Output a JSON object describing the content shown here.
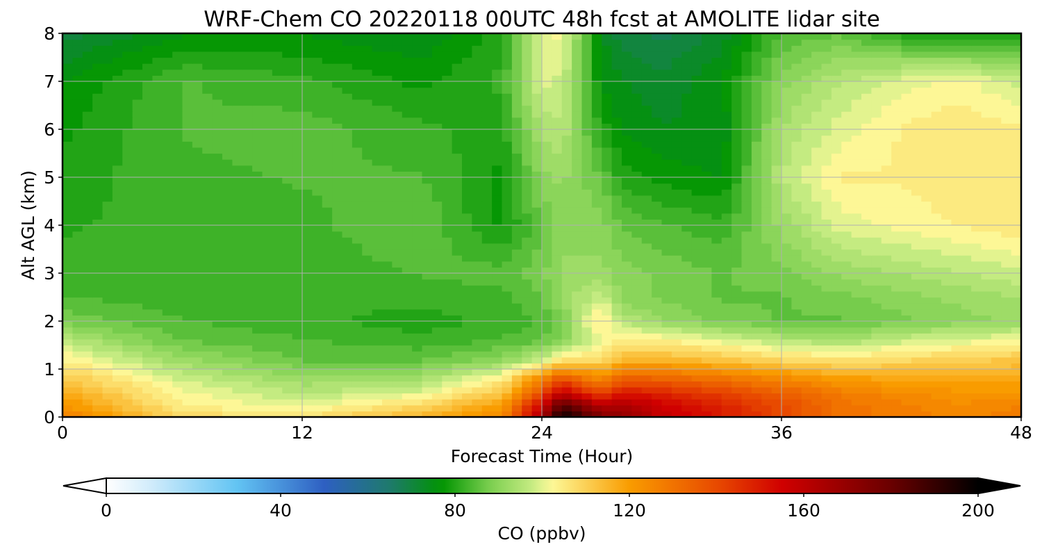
{
  "chart_data": {
    "type": "heatmap",
    "title": "WRF-Chem CO  20220118 00UTC 48h fcst at AMOLITE lidar site",
    "xlabel": "Forecast Time (Hour)",
    "ylabel": "Alt AGL (km)",
    "xlim": [
      0,
      48
    ],
    "ylim": [
      0,
      8
    ],
    "xticks": [
      "0",
      "12",
      "24",
      "36",
      "48"
    ],
    "yticks": [
      "0",
      "1",
      "2",
      "3",
      "4",
      "5",
      "6",
      "7",
      "8"
    ],
    "grid": true,
    "x_hours": [
      0,
      6,
      12,
      18,
      22,
      24,
      25,
      27,
      28,
      30,
      33,
      36,
      39,
      42,
      45,
      48
    ],
    "y_km": [
      0,
      0.25,
      0.5,
      0.8,
      1.2,
      1.6,
      2,
      2.5,
      3,
      4,
      5,
      6,
      7,
      8
    ],
    "z_ppbv": [
      [
        128,
        108,
        106,
        116,
        125,
        165,
        200,
        175,
        170,
        158,
        150,
        140,
        130,
        128,
        125,
        128
      ],
      [
        122,
        104,
        100,
        108,
        120,
        155,
        185,
        160,
        165,
        155,
        148,
        140,
        130,
        127,
        124,
        126
      ],
      [
        118,
        102,
        96,
        100,
        112,
        140,
        160,
        140,
        150,
        148,
        142,
        135,
        128,
        124,
        122,
        122
      ],
      [
        112,
        98,
        92,
        94,
        104,
        125,
        138,
        124,
        136,
        134,
        130,
        125,
        120,
        118,
        117,
        118
      ],
      [
        104,
        92,
        86,
        86,
        90,
        98,
        105,
        108,
        114,
        115,
        112,
        108,
        106,
        108,
        110,
        112
      ],
      [
        96,
        86,
        84,
        82,
        84,
        86,
        90,
        100,
        104,
        104,
        100,
        96,
        94,
        98,
        100,
        102
      ],
      [
        88,
        84,
        82,
        80,
        82,
        84,
        88,
        106,
        96,
        92,
        88,
        86,
        86,
        88,
        90,
        92
      ],
      [
        84,
        82,
        82,
        82,
        83,
        86,
        92,
        98,
        90,
        88,
        86,
        86,
        88,
        90,
        92,
        94
      ],
      [
        82,
        82,
        82,
        84,
        85,
        88,
        92,
        92,
        90,
        88,
        86,
        88,
        92,
        94,
        96,
        98
      ],
      [
        81,
        82,
        83,
        86,
        78,
        86,
        90,
        90,
        86,
        84,
        82,
        92,
        100,
        102,
        104,
        106
      ],
      [
        80,
        83,
        84,
        84,
        78,
        90,
        92,
        86,
        80,
        78,
        76,
        96,
        104,
        104,
        106,
        106
      ],
      [
        78,
        84,
        85,
        82,
        80,
        94,
        96,
        80,
        76,
        74,
        74,
        94,
        100,
        104,
        106,
        104
      ],
      [
        76,
        84,
        82,
        78,
        82,
        100,
        98,
        76,
        74,
        72,
        76,
        90,
        96,
        100,
        102,
        98
      ],
      [
        70,
        76,
        76,
        74,
        80,
        100,
        102,
        74,
        70,
        68,
        72,
        84,
        86,
        80,
        78,
        78
      ]
    ],
    "colorbar": {
      "label": "CO  (ppbv)",
      "min": 0,
      "max": 200,
      "ticks": [
        "0",
        "40",
        "80",
        "120",
        "160",
        "200"
      ],
      "extend": "both",
      "colors": [
        {
          "v": 0,
          "c": "#ffffff"
        },
        {
          "v": 10,
          "c": "#d2ecfb"
        },
        {
          "v": 30,
          "c": "#62c4f3"
        },
        {
          "v": 50,
          "c": "#2e5fc2"
        },
        {
          "v": 65,
          "c": "#1e7a6c"
        },
        {
          "v": 77,
          "c": "#009400"
        },
        {
          "v": 88,
          "c": "#7ccf50"
        },
        {
          "v": 98,
          "c": "#c8ec84"
        },
        {
          "v": 102,
          "c": "#fdfa9a"
        },
        {
          "v": 120,
          "c": "#f99c00"
        },
        {
          "v": 140,
          "c": "#e84a00"
        },
        {
          "v": 155,
          "c": "#d00000"
        },
        {
          "v": 180,
          "c": "#6a0000"
        },
        {
          "v": 200,
          "c": "#000000"
        }
      ]
    }
  }
}
